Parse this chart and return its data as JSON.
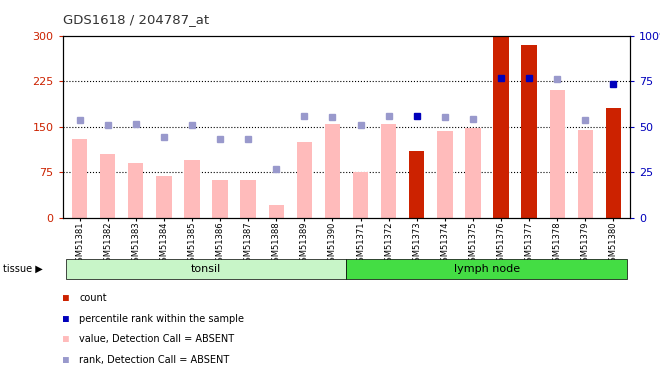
{
  "title": "GDS1618 / 204787_at",
  "samples": [
    "GSM51381",
    "GSM51382",
    "GSM51383",
    "GSM51384",
    "GSM51385",
    "GSM51386",
    "GSM51387",
    "GSM51388",
    "GSM51389",
    "GSM51390",
    "GSM51371",
    "GSM51372",
    "GSM51373",
    "GSM51374",
    "GSM51375",
    "GSM51376",
    "GSM51377",
    "GSM51378",
    "GSM51379",
    "GSM51380"
  ],
  "bar_values": [
    130,
    105,
    90,
    68,
    95,
    62,
    62,
    20,
    125,
    155,
    75,
    155,
    110,
    143,
    147,
    297,
    285,
    210,
    145,
    180
  ],
  "bar_absent": [
    true,
    true,
    true,
    true,
    true,
    true,
    true,
    true,
    true,
    true,
    true,
    true,
    false,
    true,
    true,
    false,
    false,
    true,
    true,
    false
  ],
  "rank_values": [
    160,
    153,
    155,
    133,
    152,
    130,
    130,
    80,
    168,
    165,
    152,
    168,
    168,
    165,
    163,
    230,
    230,
    228,
    160,
    220
  ],
  "rank_absent": [
    true,
    true,
    true,
    true,
    true,
    true,
    true,
    true,
    true,
    true,
    true,
    true,
    false,
    true,
    true,
    false,
    false,
    true,
    true,
    false
  ],
  "tissue_groups": [
    {
      "label": "tonsil",
      "start": 0,
      "end": 10,
      "color": "#c8f5c8"
    },
    {
      "label": "lymph node",
      "start": 10,
      "end": 20,
      "color": "#44dd44"
    }
  ],
  "ylim_left": [
    0,
    300
  ],
  "ylim_right": [
    0,
    100
  ],
  "yticks_left": [
    0,
    75,
    150,
    225,
    300
  ],
  "yticks_right": [
    0,
    25,
    50,
    75,
    100
  ],
  "hlines": [
    75,
    150,
    225
  ],
  "bar_color_present": "#cc2200",
  "bar_color_absent": "#ffbbbb",
  "rank_color_present": "#0000bb",
  "rank_color_absent": "#9999cc",
  "bar_width": 0.55,
  "title_color": "#333333",
  "left_tick_color": "#cc2200",
  "right_tick_color": "#0000bb",
  "legend_items": [
    {
      "color": "#cc2200",
      "label": "count"
    },
    {
      "color": "#0000bb",
      "label": "percentile rank within the sample"
    },
    {
      "color": "#ffbbbb",
      "label": "value, Detection Call = ABSENT"
    },
    {
      "color": "#9999cc",
      "label": "rank, Detection Call = ABSENT"
    }
  ]
}
